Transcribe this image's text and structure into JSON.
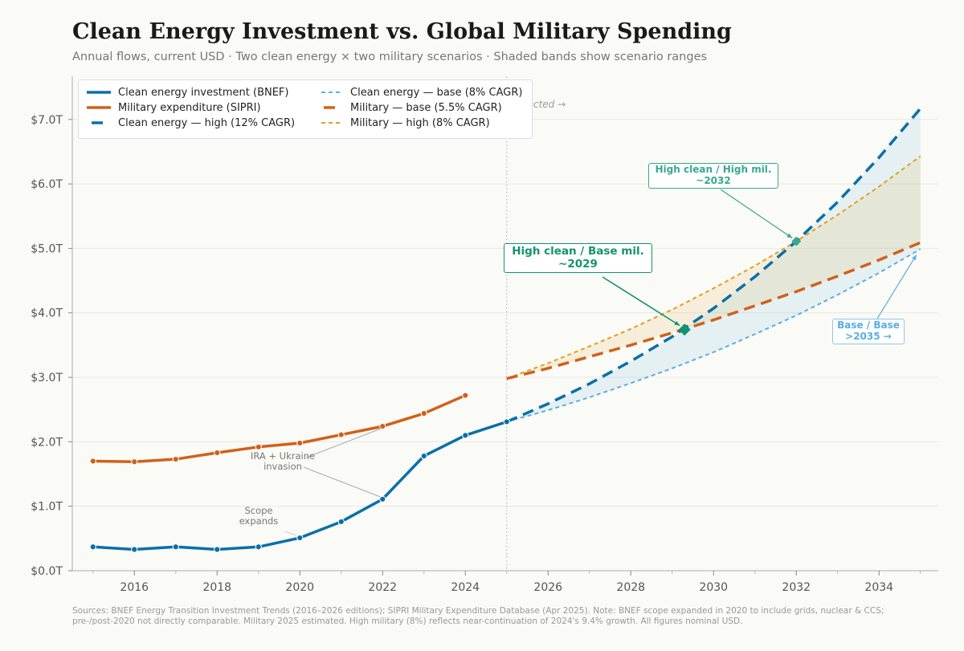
{
  "title": "Clean Energy Investment vs. Global Military Spending",
  "subtitle": "Annual flows, current USD  ·  Two clean energy × two military scenarios  ·  Shaded bands show scenario ranges",
  "footer": {
    "line1": "Sources: BNEF Energy Transition Investment Trends (2016–2026 editions); SIPRI Military Expenditure Database (Apr 2025).  Note: BNEF scope expanded in 2020 to include grids, nuclear & CCS;",
    "line2": "pre-/post-2020 not directly comparable. Military 2025 estimated. High military (8%) reflects near-continuation of 2024's 9.4% growth. All figures nominal USD."
  },
  "chart_data": {
    "type": "line",
    "xlim": [
      2014.5,
      2035.5
    ],
    "ylim": [
      0,
      7.67
    ],
    "x_ticks": [
      2016,
      2018,
      2020,
      2022,
      2024,
      2026,
      2028,
      2030,
      2032,
      2034
    ],
    "y_ticks": [
      0,
      1,
      2,
      3,
      4,
      5,
      6,
      7
    ],
    "y_tick_labels": [
      "$0.0T",
      "$1.0T",
      "$2.0T",
      "$3.0T",
      "$4.0T",
      "$5.0T",
      "$6.0T",
      "$7.0T"
    ],
    "grid": "horizontal",
    "legend_placement": "top-left",
    "projection_start": 2025,
    "projection_label": "Projected →",
    "series": [
      {
        "name": "Clean energy investment (BNEF)",
        "color": "#0a6fa8",
        "style": "solid-markers",
        "x": [
          2015,
          2016,
          2017,
          2018,
          2019,
          2020,
          2021,
          2022,
          2023,
          2024,
          2025
        ],
        "y": [
          0.37,
          0.33,
          0.37,
          0.33,
          0.37,
          0.51,
          0.76,
          1.11,
          1.78,
          2.1,
          2.31
        ]
      },
      {
        "name": "Military expenditure (SIPRI)",
        "color": "#d0611a",
        "style": "solid-markers",
        "x": [
          2015,
          2016,
          2017,
          2018,
          2019,
          2020,
          2021,
          2022,
          2023,
          2024
        ],
        "y": [
          1.7,
          1.69,
          1.73,
          1.83,
          1.92,
          1.98,
          2.11,
          2.24,
          2.44,
          2.72
        ]
      },
      {
        "name": "Clean energy — high (12% CAGR)",
        "color": "#0a6fa8",
        "style": "long-dash",
        "x": [
          2025,
          2026,
          2027,
          2028,
          2029,
          2030,
          2031,
          2032,
          2033,
          2034,
          2035
        ],
        "y": [
          2.31,
          2.59,
          2.9,
          3.25,
          3.63,
          4.07,
          4.56,
          5.11,
          5.72,
          6.41,
          7.17
        ]
      },
      {
        "name": "Clean energy — base (8% CAGR)",
        "color": "#5aaee0",
        "style": "short-dash",
        "x": [
          2025,
          2026,
          2027,
          2028,
          2029,
          2030,
          2031,
          2032,
          2033,
          2034,
          2035
        ],
        "y": [
          2.31,
          2.49,
          2.69,
          2.91,
          3.14,
          3.39,
          3.67,
          3.96,
          4.28,
          4.62,
          4.99
        ]
      },
      {
        "name": "Military — base (5.5% CAGR)",
        "color": "#d0611a",
        "style": "long-dash",
        "x": [
          2025,
          2026,
          2027,
          2028,
          2029,
          2030,
          2031,
          2032,
          2033,
          2034,
          2035
        ],
        "y": [
          2.98,
          3.14,
          3.32,
          3.5,
          3.69,
          3.89,
          4.11,
          4.33,
          4.57,
          4.82,
          5.09
        ]
      },
      {
        "name": "Military — high (8% CAGR)",
        "color": "#e0a020",
        "style": "short-dash",
        "x": [
          2025,
          2026,
          2027,
          2028,
          2029,
          2030,
          2031,
          2032,
          2033,
          2034,
          2035
        ],
        "y": [
          2.98,
          3.22,
          3.48,
          3.75,
          4.05,
          4.38,
          4.73,
          5.11,
          5.52,
          5.96,
          6.43
        ]
      }
    ],
    "bands": [
      {
        "between": [
          "Clean energy — base (8% CAGR)",
          "Clean energy — high (12% CAGR)"
        ],
        "color": "#5aaee0"
      },
      {
        "between": [
          "Military — base (5.5% CAGR)",
          "Military — high (8% CAGR)"
        ],
        "color": "#e0a020"
      }
    ],
    "annotations": [
      {
        "line1": "High clean / Base mil.",
        "line2": "~2029",
        "x": 2029.3,
        "y": 3.74,
        "color": "#12936f",
        "marker": "diamond"
      },
      {
        "line1": "High clean / High mil.",
        "line2": "~2032",
        "x": 2032,
        "y": 5.11,
        "color": "#3aa88c",
        "marker": "diamond"
      },
      {
        "line1": "Base / Base",
        "line2": ">2035 →",
        "x": 2035,
        "y": 4.95,
        "color": "#5aaee0",
        "marker": "none"
      },
      {
        "line1": "IRA + Ukraine",
        "line2": "invasion",
        "x": 2022,
        "color": "#777777"
      },
      {
        "line1": "Scope",
        "line2": "expands",
        "x": 2020,
        "color": "#777777"
      }
    ]
  }
}
